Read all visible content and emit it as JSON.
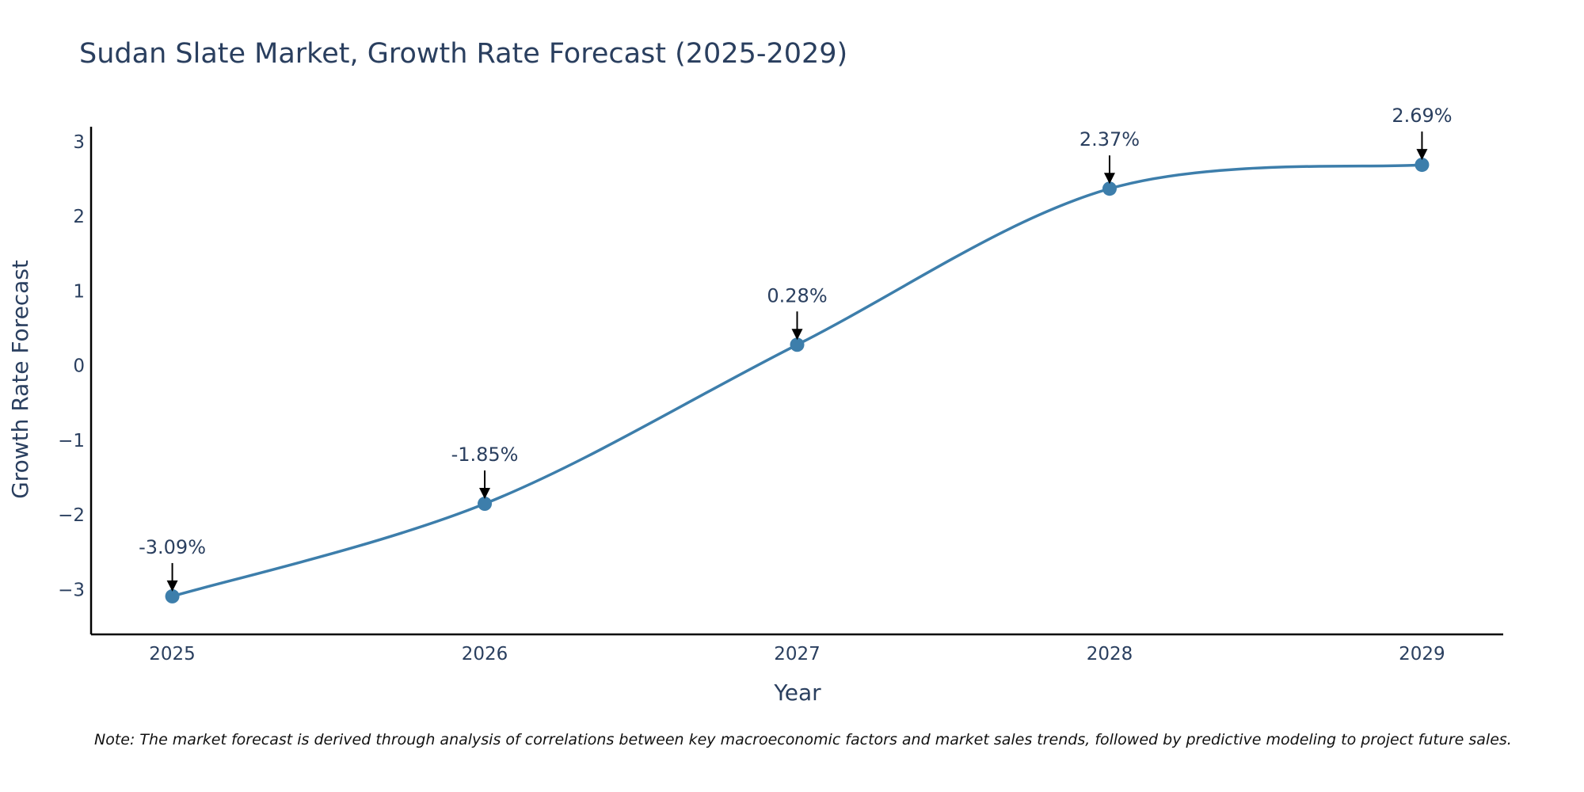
{
  "chart_data": {
    "type": "line",
    "title": "Sudan Slate Market, Growth Rate Forecast (2025-2029)",
    "xlabel": "Year",
    "ylabel": "Growth Rate Forecast",
    "categories": [
      "2025",
      "2026",
      "2027",
      "2028",
      "2029"
    ],
    "series": [
      {
        "name": "Growth Rate Forecast",
        "values": [
          -3.09,
          -1.85,
          0.28,
          2.37,
          2.69
        ],
        "labels": [
          "-3.09%",
          "-1.85%",
          "0.28%",
          "2.37%",
          "2.69%"
        ]
      }
    ],
    "yticks": [
      -3,
      -2,
      -1,
      0,
      1,
      2,
      3
    ],
    "ytick_labels": [
      "−3",
      "−2",
      "−1",
      "0",
      "1",
      "2",
      "3"
    ],
    "ylim": [
      -3.6,
      3.2
    ],
    "xlim": [
      2024.74,
      2029.26
    ],
    "grid": false,
    "line_shape": "spline",
    "note": "Note: The market forecast is derived through analysis of correlations between key macroeconomic factors and market sales trends, followed by predictive modeling to project future sales."
  },
  "colors": {
    "line": "#3d7eab",
    "marker": "#3d7eab",
    "axis": "#000000",
    "text": "#2a3f5f",
    "arrow": "#000000"
  }
}
